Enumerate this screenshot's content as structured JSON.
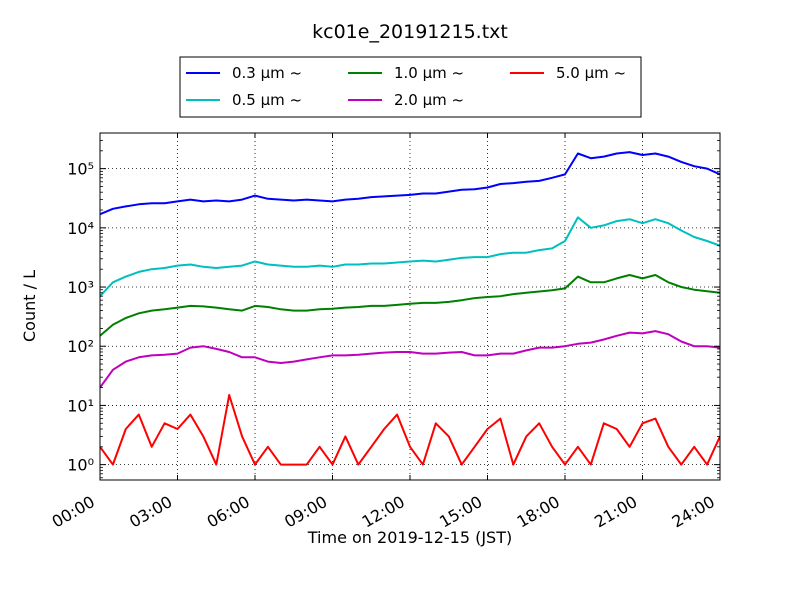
{
  "chart_data": {
    "type": "line",
    "title": "kc01e_20191215.txt",
    "xlabel": "Time on 2019-12-15 (JST)",
    "ylabel": "Count / L",
    "yscale": "log",
    "ylim": [
      0.55,
      400000
    ],
    "xlim": [
      "00:00",
      "24:00"
    ],
    "grid": true,
    "legend_position": "top",
    "x_ticks": [
      "00:00",
      "03:00",
      "06:00",
      "09:00",
      "12:00",
      "15:00",
      "18:00",
      "21:00",
      "24:00"
    ],
    "y_ticks": [
      "10⁰",
      "10¹",
      "10²",
      "10³",
      "10⁴",
      "10⁵"
    ],
    "x": [
      "00:00",
      "00:30",
      "01:00",
      "01:30",
      "02:00",
      "02:30",
      "03:00",
      "03:30",
      "04:00",
      "04:30",
      "05:00",
      "05:30",
      "06:00",
      "06:30",
      "07:00",
      "07:30",
      "08:00",
      "08:30",
      "09:00",
      "09:30",
      "10:00",
      "10:30",
      "11:00",
      "11:30",
      "12:00",
      "12:30",
      "13:00",
      "13:30",
      "14:00",
      "14:30",
      "15:00",
      "15:30",
      "16:00",
      "16:30",
      "17:00",
      "17:30",
      "18:00",
      "18:30",
      "19:00",
      "19:30",
      "20:00",
      "20:30",
      "21:00",
      "21:30",
      "22:00",
      "22:30",
      "23:00",
      "23:30",
      "24:00"
    ],
    "series": [
      {
        "name": "0.3 μm ~",
        "color": "#0000ff",
        "values": [
          17000,
          21000,
          23000,
          25000,
          26000,
          26000,
          28000,
          30000,
          28000,
          29000,
          28000,
          30000,
          35000,
          31000,
          30000,
          29000,
          30000,
          29000,
          28000,
          30000,
          31000,
          33000,
          34000,
          35000,
          36000,
          38000,
          38000,
          41000,
          44000,
          45000,
          48000,
          55000,
          57000,
          60000,
          62000,
          70000,
          80000,
          180000,
          150000,
          160000,
          180000,
          190000,
          170000,
          180000,
          160000,
          130000,
          110000,
          100000,
          80000
        ]
      },
      {
        "name": "0.5 μm ~",
        "color": "#00bfbf",
        "values": [
          700,
          1200,
          1500,
          1800,
          2000,
          2100,
          2300,
          2400,
          2200,
          2100,
          2200,
          2300,
          2700,
          2400,
          2300,
          2200,
          2200,
          2300,
          2200,
          2400,
          2400,
          2500,
          2500,
          2600,
          2700,
          2800,
          2700,
          2900,
          3100,
          3200,
          3200,
          3600,
          3800,
          3800,
          4200,
          4500,
          6000,
          15000,
          10000,
          11000,
          13000,
          14000,
          12000,
          14000,
          12000,
          9000,
          7000,
          6000,
          5000
        ]
      },
      {
        "name": "1.0 μm ~",
        "color": "#008000",
        "values": [
          150,
          230,
          300,
          360,
          400,
          420,
          450,
          480,
          470,
          450,
          420,
          400,
          480,
          460,
          420,
          400,
          400,
          420,
          430,
          450,
          460,
          480,
          480,
          500,
          520,
          540,
          540,
          560,
          600,
          650,
          680,
          700,
          760,
          800,
          840,
          880,
          950,
          1500,
          1200,
          1200,
          1400,
          1600,
          1400,
          1600,
          1200,
          1000,
          900,
          850,
          800
        ]
      },
      {
        "name": "2.0 μm ~",
        "color": "#bf00bf",
        "values": [
          20,
          40,
          55,
          65,
          70,
          72,
          75,
          95,
          100,
          90,
          80,
          65,
          65,
          55,
          52,
          55,
          60,
          65,
          70,
          70,
          72,
          75,
          78,
          80,
          80,
          75,
          75,
          78,
          80,
          70,
          70,
          75,
          75,
          85,
          95,
          95,
          100,
          110,
          115,
          130,
          150,
          170,
          165,
          180,
          160,
          120,
          100,
          100,
          95
        ]
      },
      {
        "name": "5.0 μm ~",
        "color": "#ff0000",
        "values": [
          2,
          1,
          4,
          7,
          2,
          5,
          4,
          7,
          3,
          1,
          15,
          3,
          1,
          2,
          1,
          1,
          1,
          2,
          1,
          3,
          1,
          2,
          4,
          7,
          2,
          1,
          5,
          3,
          1,
          2,
          4,
          6,
          1,
          3,
          5,
          2,
          1,
          2,
          1,
          5,
          4,
          2,
          5,
          6,
          2,
          1,
          2,
          1,
          3
        ]
      }
    ]
  }
}
